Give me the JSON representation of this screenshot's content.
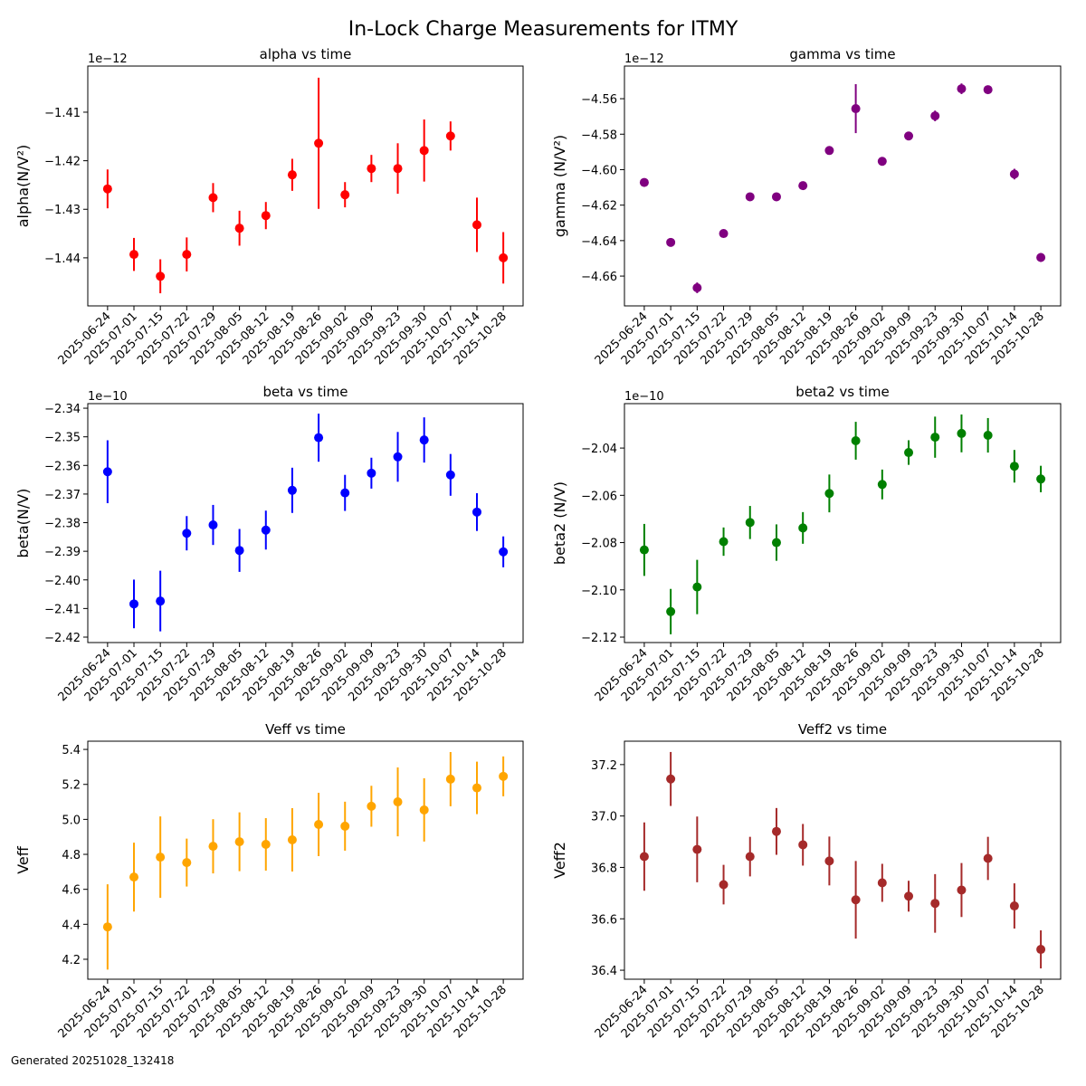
{
  "suptitle": "In-Lock Charge Measurements for ITMY",
  "footer": "Generated 20251028_132418",
  "chart_data": [
    {
      "type": "scatter",
      "title": "alpha vs time",
      "ylabel": "alpha(N/V²)",
      "offset_text": "1e−12",
      "color": "#ff0000",
      "categories": [
        "2025-06-24",
        "2025-07-01",
        "2025-07-15",
        "2025-07-22",
        "2025-07-29",
        "2025-08-05",
        "2025-08-12",
        "2025-08-19",
        "2025-08-26",
        "2025-09-02",
        "2025-09-09",
        "2025-09-23",
        "2025-09-30",
        "2025-10-07",
        "2025-10-14",
        "2025-10-28"
      ],
      "values": [
        -1.4258,
        -1.4393,
        -1.4438,
        -1.4393,
        -1.4276,
        -1.4339,
        -1.4313,
        -1.4229,
        -1.4164,
        -1.427,
        -1.4216,
        -1.4216,
        -1.4179,
        -1.4149,
        -1.4332,
        -1.44
      ],
      "errors": [
        0.004,
        0.0034,
        0.0035,
        0.0035,
        0.003,
        0.0036,
        0.0028,
        0.0033,
        0.0135,
        0.0026,
        0.0028,
        0.0052,
        0.0064,
        0.003,
        0.0056,
        0.0053
      ],
      "yticks": [
        -1.41,
        -1.42,
        -1.43,
        -1.44
      ],
      "ytick_labels": [
        "−1.41",
        "−1.42",
        "−1.43",
        "−1.44"
      ],
      "ylim": [
        -1.4499,
        -1.4005
      ]
    },
    {
      "type": "scatter",
      "title": "gamma vs time",
      "ylabel": "gamma (N/V²)",
      "offset_text": "1e−12",
      "color": "#800080",
      "categories": [
        "2025-06-24",
        "2025-07-01",
        "2025-07-15",
        "2025-07-22",
        "2025-07-29",
        "2025-08-05",
        "2025-08-12",
        "2025-08-19",
        "2025-08-26",
        "2025-09-02",
        "2025-09-09",
        "2025-09-23",
        "2025-09-30",
        "2025-10-07",
        "2025-10-14",
        "2025-10-28"
      ],
      "values": [
        -4.6072,
        -4.641,
        -4.6666,
        -4.636,
        -4.6153,
        -4.6153,
        -4.609,
        -4.5892,
        -4.5656,
        -4.5953,
        -4.581,
        -4.5697,
        -4.5544,
        -4.5549,
        -4.6025,
        -4.6495
      ],
      "errors": [
        0.002,
        0.002,
        0.003,
        0.002,
        0.0015,
        0.002,
        0.0015,
        0.002,
        0.0138,
        0.001,
        0.001,
        0.003,
        0.003,
        0.0015,
        0.003,
        0.0025
      ],
      "yticks": [
        -4.56,
        -4.58,
        -4.6,
        -4.62,
        -4.64,
        -4.66
      ],
      "ytick_labels": [
        "−4.56",
        "−4.58",
        "−4.60",
        "−4.62",
        "−4.64",
        "−4.66"
      ],
      "ylim": [
        -4.6768,
        -4.5416
      ]
    },
    {
      "type": "scatter",
      "title": "beta vs time",
      "ylabel": "beta(N/V)",
      "offset_text": "1e−10",
      "color": "#0000ff",
      "categories": [
        "2025-06-24",
        "2025-07-01",
        "2025-07-15",
        "2025-07-22",
        "2025-07-29",
        "2025-08-05",
        "2025-08-12",
        "2025-08-19",
        "2025-08-26",
        "2025-09-02",
        "2025-09-09",
        "2025-09-23",
        "2025-09-30",
        "2025-10-07",
        "2025-10-14",
        "2025-10-28"
      ],
      "values": [
        -2.3622,
        -2.4084,
        -2.4074,
        -2.3837,
        -2.3808,
        -2.3897,
        -2.3826,
        -2.3687,
        -2.3503,
        -2.3696,
        -2.3627,
        -2.357,
        -2.3511,
        -2.3633,
        -2.3763,
        -2.3902
      ],
      "errors": [
        0.011,
        0.0085,
        0.0106,
        0.006,
        0.007,
        0.0075,
        0.0068,
        0.0079,
        0.0084,
        0.0063,
        0.0054,
        0.0087,
        0.0079,
        0.0073,
        0.0066,
        0.0054
      ],
      "yticks": [
        -2.34,
        -2.35,
        -2.36,
        -2.37,
        -2.38,
        -2.39,
        -2.4,
        -2.41,
        -2.42
      ],
      "ytick_labels": [
        "−2.34",
        "−2.35",
        "−2.36",
        "−2.37",
        "−2.38",
        "−2.39",
        "−2.40",
        "−2.41",
        "−2.42"
      ],
      "ylim": [
        -2.4219,
        -2.3384
      ]
    },
    {
      "type": "scatter",
      "title": "beta2 vs time",
      "ylabel": "beta2 (N/V)",
      "offset_text": "1e−10",
      "color": "#008000",
      "categories": [
        "2025-06-24",
        "2025-07-01",
        "2025-07-15",
        "2025-07-22",
        "2025-07-29",
        "2025-08-05",
        "2025-08-12",
        "2025-08-19",
        "2025-08-26",
        "2025-09-02",
        "2025-09-09",
        "2025-09-23",
        "2025-09-30",
        "2025-10-07",
        "2025-10-14",
        "2025-10-28"
      ],
      "values": [
        -2.0831,
        -2.1092,
        -2.0988,
        -2.0796,
        -2.0715,
        -2.08,
        -2.0738,
        -2.0592,
        -2.0369,
        -2.0554,
        -2.0419,
        -2.0354,
        -2.0338,
        -2.0346,
        -2.0477,
        -2.0531
      ],
      "errors": [
        0.011,
        0.0096,
        0.0115,
        0.006,
        0.007,
        0.0077,
        0.0067,
        0.008,
        0.008,
        0.0063,
        0.0052,
        0.0087,
        0.008,
        0.0073,
        0.0069,
        0.0056
      ],
      "yticks": [
        -2.04,
        -2.06,
        -2.08,
        -2.1,
        -2.12
      ],
      "ytick_labels": [
        "−2.04",
        "−2.06",
        "−2.08",
        "−2.10",
        "−2.12"
      ],
      "ylim": [
        -2.1223,
        -2.0212
      ]
    },
    {
      "type": "scatter",
      "title": "Veff vs time",
      "ylabel": "Veff",
      "offset_text": "",
      "color": "#ffa500",
      "categories": [
        "2025-06-24",
        "2025-07-01",
        "2025-07-15",
        "2025-07-22",
        "2025-07-29",
        "2025-08-05",
        "2025-08-12",
        "2025-08-19",
        "2025-08-26",
        "2025-09-02",
        "2025-09-09",
        "2025-09-23",
        "2025-09-30",
        "2025-10-07",
        "2025-10-14",
        "2025-10-28"
      ],
      "values": [
        4.385,
        4.67,
        4.784,
        4.753,
        4.846,
        4.872,
        4.857,
        4.883,
        4.971,
        4.961,
        5.075,
        5.1,
        5.054,
        5.23,
        5.18,
        5.246
      ],
      "errors": [
        0.244,
        0.197,
        0.233,
        0.137,
        0.155,
        0.168,
        0.15,
        0.181,
        0.181,
        0.14,
        0.117,
        0.197,
        0.181,
        0.155,
        0.15,
        0.114
      ],
      "yticks": [
        5.4,
        5.2,
        5.0,
        4.8,
        4.6,
        4.4,
        4.2
      ],
      "ytick_labels": [
        "5.4",
        "5.2",
        "5.0",
        "4.8",
        "4.6",
        "4.4",
        "4.2"
      ],
      "ylim": [
        4.086,
        5.447
      ]
    },
    {
      "type": "scatter",
      "title": "Veff2 vs time",
      "ylabel": "Veff2",
      "offset_text": "",
      "color": "#a52a2a",
      "categories": [
        "2025-06-24",
        "2025-07-01",
        "2025-07-15",
        "2025-07-22",
        "2025-07-29",
        "2025-08-05",
        "2025-08-12",
        "2025-08-19",
        "2025-08-26",
        "2025-09-02",
        "2025-09-09",
        "2025-09-23",
        "2025-09-30",
        "2025-10-07",
        "2025-10-14",
        "2025-10-28"
      ],
      "values": [
        36.842,
        37.144,
        36.87,
        36.733,
        36.842,
        36.94,
        36.888,
        36.825,
        36.674,
        36.74,
        36.688,
        36.66,
        36.712,
        36.835,
        36.65,
        36.481
      ],
      "errors": [
        0.133,
        0.105,
        0.128,
        0.077,
        0.077,
        0.091,
        0.081,
        0.095,
        0.151,
        0.074,
        0.06,
        0.114,
        0.105,
        0.084,
        0.088,
        0.074
      ],
      "yticks": [
        37.2,
        37.0,
        36.8,
        36.6,
        36.4
      ],
      "ytick_labels": [
        "37.2",
        "37.0",
        "36.8",
        "36.6",
        "36.4"
      ],
      "ylim": [
        36.365,
        37.291
      ]
    }
  ]
}
